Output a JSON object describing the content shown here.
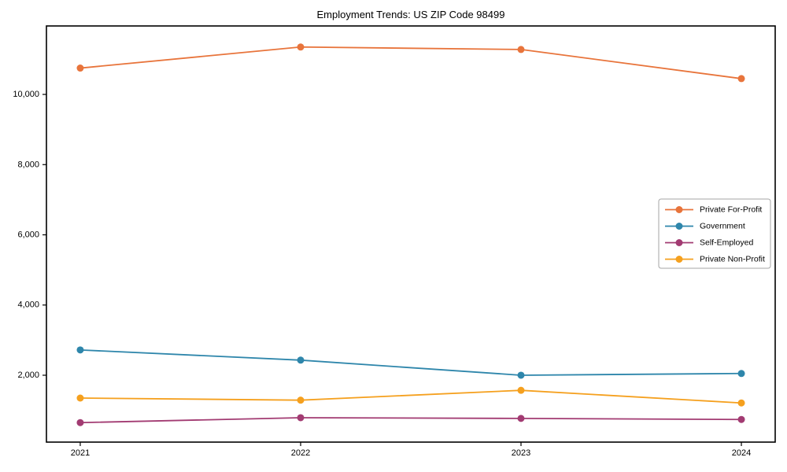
{
  "chart_data": {
    "type": "line",
    "title": "Employment Trends: US ZIP Code 98499",
    "x": [
      "2021",
      "2022",
      "2023",
      "2024"
    ],
    "series": [
      {
        "name": "Private For-Profit",
        "color": "#E8743B",
        "values": [
          10750,
          11350,
          11280,
          10450
        ]
      },
      {
        "name": "Government",
        "color": "#2E86AB",
        "values": [
          2720,
          2430,
          2000,
          2050
        ]
      },
      {
        "name": "Self-Employed",
        "color": "#A23B72",
        "values": [
          650,
          790,
          770,
          740
        ]
      },
      {
        "name": "Private Non-Profit",
        "color": "#F5A01E",
        "values": [
          1350,
          1290,
          1570,
          1210
        ]
      }
    ],
    "xlabel": "",
    "ylabel": "",
    "ylim": [
      95,
      11950
    ],
    "yticks": [
      2000,
      4000,
      6000,
      8000,
      10000
    ],
    "grid": false,
    "legend_position": "right-middle",
    "marker": "circle",
    "axis_color": "#000000",
    "background_color": "#ffffff"
  }
}
